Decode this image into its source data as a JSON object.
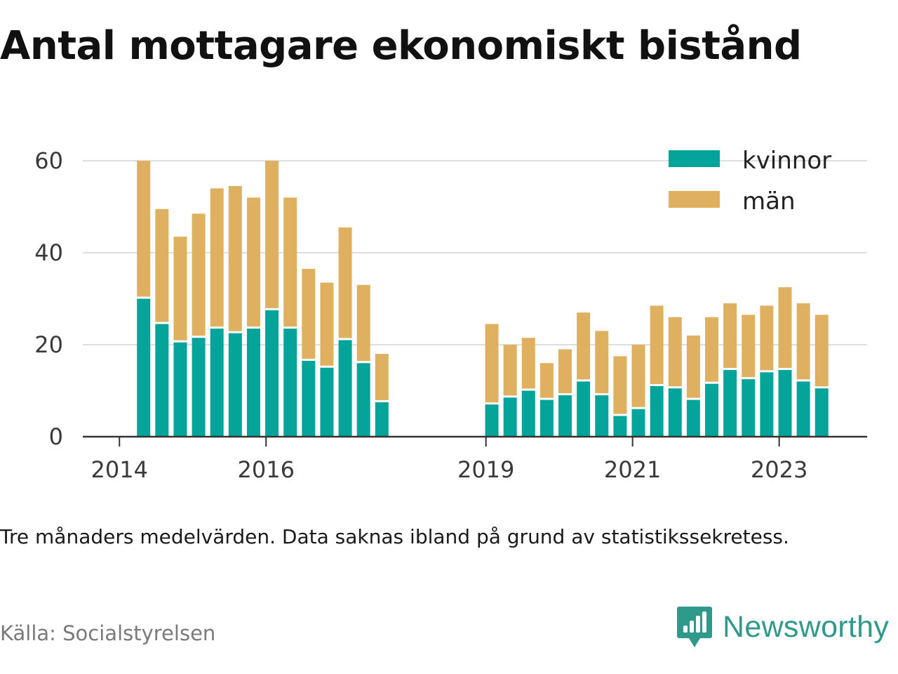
{
  "title": "Antal mottagare ekonomiskt bistånd",
  "note": "Tre månaders medelvärden. Data saknas ibland på grund av statistikssekretess.",
  "source": "Källa: Socialstyrelsen",
  "brand": "Newsworthy",
  "colors": {
    "kvinnor": "#04a49a",
    "man": "#deb05f",
    "grid": "#dedede",
    "axis": "#333333",
    "brand": "#2f9a8c"
  },
  "chart_data": {
    "type": "bar",
    "stacked": true,
    "x_tick_labels": [
      "2014",
      "2016",
      "2019",
      "2021",
      "2023"
    ],
    "x_ticks": [
      2014,
      2016,
      2019,
      2021,
      2023
    ],
    "xlim": [
      2013.5,
      2024.2
    ],
    "ylim": [
      0,
      60
    ],
    "y_ticks": [
      0,
      20,
      40,
      60
    ],
    "y_tick_labels": [
      "0",
      "20",
      "40",
      "60"
    ],
    "grid": true,
    "legend_position": "top-right",
    "x": [
      2014.33,
      2014.58,
      2014.83,
      2015.08,
      2015.33,
      2015.58,
      2015.83,
      2016.08,
      2016.33,
      2016.58,
      2016.83,
      2017.08,
      2017.33,
      2017.58,
      2019.08,
      2019.33,
      2019.58,
      2019.83,
      2020.08,
      2020.33,
      2020.58,
      2020.83,
      2021.08,
      2021.33,
      2021.58,
      2021.83,
      2022.08,
      2022.33,
      2022.58,
      2022.83,
      2023.08,
      2023.33,
      2023.58
    ],
    "series": [
      {
        "name": "kvinnor",
        "values": [
          30,
          24.5,
          20.5,
          21.5,
          23.5,
          22.5,
          23.5,
          27.5,
          23.5,
          16.5,
          15,
          21,
          16,
          7.5,
          7,
          8.5,
          10,
          8,
          9,
          12,
          9,
          4.5,
          6,
          11,
          10.5,
          8,
          11.5,
          14.5,
          12.5,
          14,
          14.5,
          12,
          10.5
        ]
      },
      {
        "name": "män",
        "values": [
          30,
          25,
          23,
          27,
          30.5,
          32,
          28.5,
          32.5,
          28.5,
          20,
          18.5,
          24.5,
          17,
          10.5,
          17.5,
          11.5,
          11.5,
          8,
          10,
          15,
          14,
          13,
          14,
          17.5,
          15.5,
          14,
          14.5,
          14.5,
          14,
          14.5,
          18,
          17,
          16
        ]
      }
    ]
  }
}
